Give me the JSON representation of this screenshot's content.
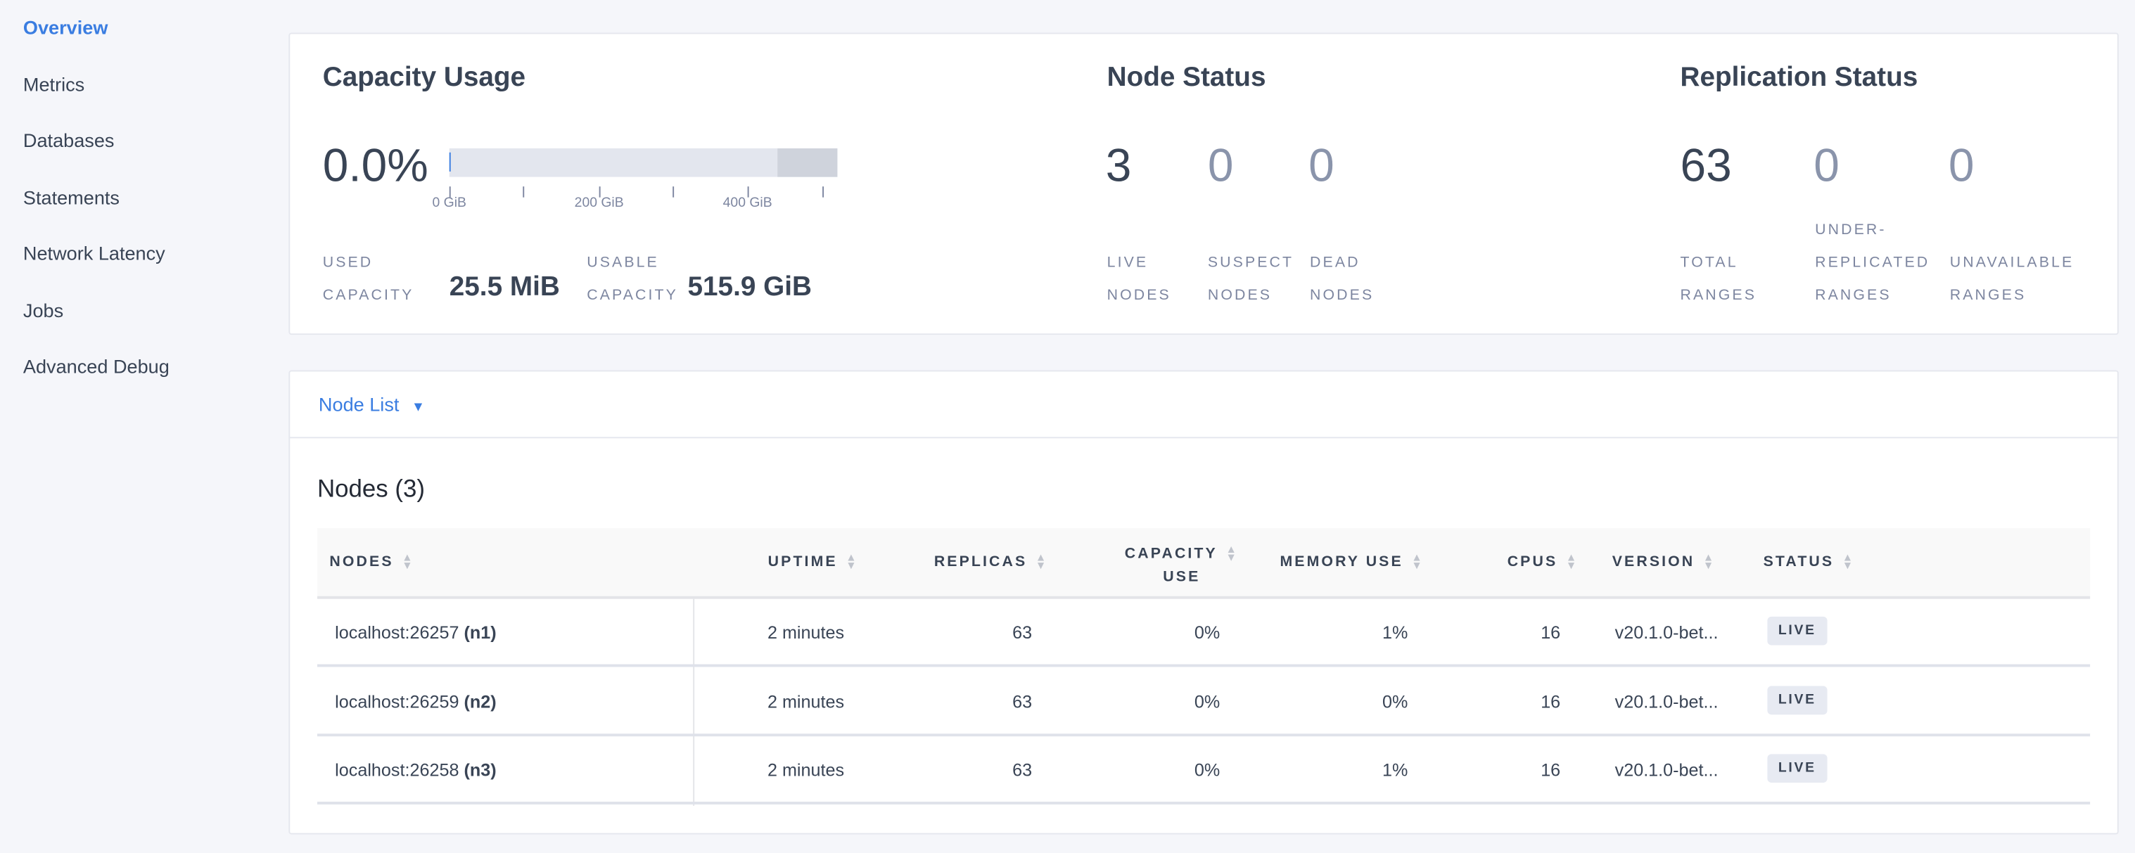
{
  "sidebar": {
    "items": [
      {
        "label": "Overview",
        "active": true
      },
      {
        "label": "Metrics"
      },
      {
        "label": "Databases"
      },
      {
        "label": "Statements"
      },
      {
        "label": "Network Latency"
      },
      {
        "label": "Jobs"
      },
      {
        "label": "Advanced Debug"
      }
    ]
  },
  "capacity": {
    "title": "Capacity Usage",
    "percent": "0.0%",
    "usage_fraction": 0.0,
    "ticks": [
      "0 GiB",
      "200 GiB",
      "400 GiB"
    ],
    "used_label": [
      "USED",
      "CAPACITY"
    ],
    "used_value": "25.5 MiB",
    "usable_label": [
      "USABLE",
      "CAPACITY"
    ],
    "usable_value": "515.9 GiB"
  },
  "node_status": {
    "title": "Node Status",
    "stats": [
      {
        "value": "3",
        "label": [
          "LIVE",
          "NODES"
        ]
      },
      {
        "value": "0",
        "label": [
          "SUSPECT",
          "NODES"
        ]
      },
      {
        "value": "0",
        "label": [
          "DEAD",
          "NODES"
        ]
      }
    ]
  },
  "replication": {
    "title": "Replication Status",
    "stats": [
      {
        "value": "63",
        "label": [
          "TOTAL",
          "RANGES"
        ]
      },
      {
        "value": "0",
        "label": [
          "UNDER-",
          "REPLICATED",
          "RANGES"
        ]
      },
      {
        "value": "0",
        "label": [
          "UNAVAILABLE",
          "RANGES"
        ]
      }
    ]
  },
  "node_list": {
    "dropdown": "Node List",
    "heading": "Nodes (3)",
    "columns": [
      "NODES",
      "UPTIME",
      "REPLICAS",
      "CAPACITY",
      "USE",
      "MEMORY USE",
      "CPUS",
      "VERSION",
      "STATUS"
    ],
    "rows": [
      {
        "host": "localhost:26257",
        "id": "(n1)",
        "uptime": "2 minutes",
        "replicas": "63",
        "capacity": "0%",
        "memory": "1%",
        "cpus": "16",
        "version": "v20.1.0-bet...",
        "status": "LIVE"
      },
      {
        "host": "localhost:26259",
        "id": "(n2)",
        "uptime": "2 minutes",
        "replicas": "63",
        "capacity": "0%",
        "memory": "0%",
        "cpus": "16",
        "version": "v20.1.0-bet...",
        "status": "LIVE"
      },
      {
        "host": "localhost:26258",
        "id": "(n3)",
        "uptime": "2 minutes",
        "replicas": "63",
        "capacity": "0%",
        "memory": "1%",
        "cpus": "16",
        "version": "v20.1.0-bet...",
        "status": "LIVE"
      }
    ]
  },
  "colors": {
    "accent": "#3a7de1",
    "text": "#394455",
    "muted": "#7d86a0"
  }
}
